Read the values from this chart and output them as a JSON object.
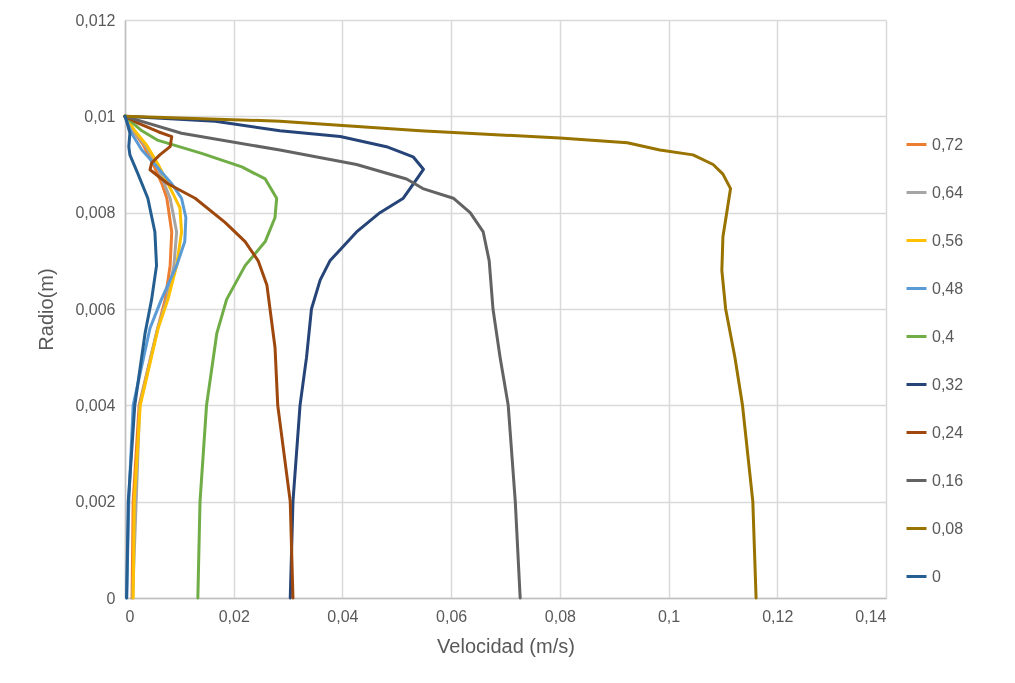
{
  "chart_data": {
    "type": "line",
    "xlabel": "Velocidad (m/s)",
    "ylabel": "Radio(m)",
    "xlim": [
      0,
      0.14
    ],
    "ylim": [
      0,
      0.012
    ],
    "xticks": [
      0,
      {
        "value": 0.02,
        "label": "0,02"
      },
      {
        "value": 0.04,
        "label": "0,04"
      },
      {
        "value": 0.06,
        "label": "0,06"
      },
      {
        "value": 0.08,
        "label": "0,08"
      },
      {
        "value": 0.1,
        "label": "0,1"
      },
      {
        "value": 0.12,
        "label": "0,12"
      },
      {
        "value": 0.14,
        "label": "0,14"
      }
    ],
    "yticks": [
      0,
      {
        "value": 0.002,
        "label": "0,002"
      },
      {
        "value": 0.004,
        "label": "0,004"
      },
      {
        "value": 0.006,
        "label": "0,006"
      },
      {
        "value": 0.008,
        "label": "0,008"
      },
      {
        "value": 0.01,
        "label": "0,01"
      },
      {
        "value": 0.012,
        "label": "0,012"
      }
    ],
    "grid": true,
    "legend": "right",
    "series": [
      {
        "name": "0,72",
        "color": "#ed7d31",
        "x": [
          0,
          0.0015,
          0.0034,
          0.0052,
          0.0068,
          0.0077,
          0.0086,
          0.0083,
          0.0074,
          0.0058,
          0.0026,
          0.0015,
          0.0013
        ],
        "values": [
          0.01,
          0.0097,
          0.0094,
          0.009,
          0.0086,
          0.0083,
          0.0076,
          0.0069,
          0.0062,
          0.0055,
          0.004,
          0.002,
          0
        ]
      },
      {
        "name": "0,64",
        "color": "#a5a5a5",
        "x": [
          0,
          0.0016,
          0.0037,
          0.0058,
          0.0083,
          0.0095,
          0.009,
          0.0077,
          0.006,
          0.0027,
          null,
          0.0014
        ],
        "values": [
          0.01,
          0.0097,
          0.0094,
          0.009,
          0.0083,
          0.0076,
          0.0069,
          0.0062,
          0.0056,
          0.004,
          null,
          0
        ]
      },
      {
        "name": "0,56",
        "color": "#ffc000",
        "x": [
          0,
          0.0018,
          0.004,
          0.0061,
          0.0088,
          0.0101,
          0.0104,
          0.0095,
          0.0079,
          0.0061,
          0.0028,
          0.0017,
          0.0015
        ],
        "values": [
          0.01,
          0.0097,
          0.0094,
          0.009,
          0.0084,
          0.0081,
          0.0076,
          0.0069,
          0.0062,
          0.0056,
          0.004,
          0.002,
          0
        ]
      },
      {
        "name": "0,48",
        "color": "#5b9bd5",
        "x": [
          0,
          0.0012,
          0.0031,
          0.0055,
          0.0086,
          0.0104,
          0.0112,
          0.011,
          0.0095,
          0.0067,
          0.0046,
          0.0015,
          0.0007,
          0.0003
        ],
        "values": [
          0.01,
          0.00965,
          0.0093,
          0.009,
          0.0086,
          0.0083,
          0.0079,
          0.0074,
          0.0069,
          0.0062,
          0.0056,
          0.004,
          0.002,
          0
        ]
      },
      {
        "name": "0,4",
        "color": "#70ad47",
        "x": [
          0,
          0.0031,
          0.0061,
          0.0141,
          0.0215,
          0.0258,
          0.0279,
          0.0276,
          0.0258,
          0.0221,
          0.0187,
          0.0169,
          0.015,
          0.0138,
          0.0134
        ],
        "values": [
          0.01,
          0.0097,
          0.0095,
          0.00923,
          0.00895,
          0.0087,
          0.0083,
          0.0079,
          0.0074,
          0.0069,
          0.0062,
          0.0055,
          0.004,
          0.002,
          0
        ]
      },
      {
        "name": "0,32",
        "color": "#264478",
        "x": [
          0,
          0.0166,
          0.0285,
          0.0396,
          0.0481,
          0.053,
          0.0549,
          0.0537,
          0.0512,
          0.0469,
          0.0426,
          0.0377,
          0.0359,
          0.0343,
          0.0334,
          0.0322,
          0.0309,
          0.0304
        ],
        "values": [
          0.01,
          0.0099,
          0.0097,
          0.00958,
          0.00937,
          0.00916,
          0.0089,
          0.0087,
          0.0083,
          0.008,
          0.0076,
          0.007,
          0.0066,
          0.006,
          0.005,
          0.004,
          0.002,
          0
        ]
      },
      {
        "name": "0,24",
        "color": "#9e480e",
        "x": [
          0,
          0.0024,
          0.0061,
          0.0086,
          0.0083,
          0.0064,
          0.0049,
          0.0046,
          0.0079,
          0.0129,
          0.0184,
          0.0221,
          0.0245,
          0.0261,
          0.0276,
          0.0281,
          0.0304,
          0.0309
        ],
        "values": [
          0.01,
          0.00986,
          0.00968,
          0.00958,
          0.00937,
          0.0092,
          0.00903,
          0.00889,
          0.0086,
          0.0083,
          0.0078,
          0.0074,
          0.007,
          0.0065,
          0.0052,
          0.004,
          0.002,
          0
        ]
      },
      {
        "name": "0,16",
        "color": "#636363",
        "x": [
          0,
          0.0104,
          0.0285,
          0.0426,
          0.0518,
          0.0548,
          0.0604,
          0.0635,
          0.0659,
          0.067,
          0.0677,
          0.069,
          0.0705,
          0.0718,
          0.0727
        ],
        "values": [
          0.01,
          0.00965,
          0.0093,
          0.009,
          0.0087,
          0.0085,
          0.0083,
          0.008,
          0.0076,
          0.007,
          0.006,
          0.005,
          0.004,
          0.002,
          0
        ]
      },
      {
        "name": "0,08",
        "color": "#997300",
        "x": [
          0,
          0.0285,
          0.0543,
          0.08,
          0.0924,
          0.0984,
          0.1045,
          0.1082,
          0.11,
          0.1114,
          0.1107,
          0.11,
          0.1098,
          0.1105,
          0.1122,
          0.1136,
          0.1155,
          0.1161
        ],
        "values": [
          0.01,
          0.0099,
          0.0097,
          0.00955,
          0.00945,
          0.0093,
          0.0092,
          0.009,
          0.0088,
          0.0085,
          0.008,
          0.0075,
          0.0068,
          0.006,
          0.005,
          0.004,
          0.002,
          0
        ]
      },
      {
        "name": "0",
        "color": "#255e91",
        "x": [
          0,
          0.0003,
          0.0009,
          0.0007,
          0.0009,
          0.0024,
          0.0042,
          0.0055,
          0.0058,
          0.0049,
          0.0037,
          0.0018,
          0.0006,
          0.0003
        ],
        "values": [
          0.01,
          0.0099,
          0.00965,
          0.00937,
          0.0092,
          0.0088,
          0.0083,
          0.0076,
          0.0069,
          0.0062,
          0.0055,
          0.004,
          0.002,
          0
        ]
      }
    ]
  }
}
